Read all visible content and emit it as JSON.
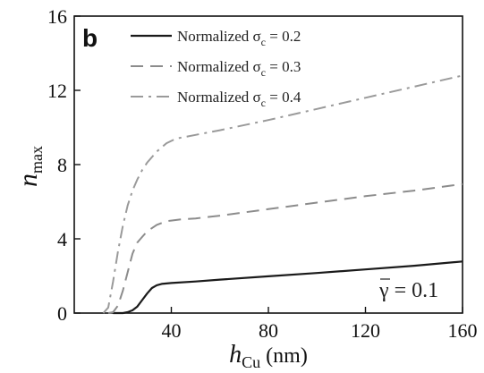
{
  "chart_data": {
    "type": "line",
    "panel_label": "b",
    "xlabel": {
      "main": "h",
      "sub": "Cu",
      "unit": " (nm)"
    },
    "ylabel": {
      "main": "n",
      "sub": "max"
    },
    "xlim": [
      0,
      160
    ],
    "ylim": [
      0,
      16
    ],
    "xticks": [
      40,
      80,
      120,
      160
    ],
    "yticks": [
      0,
      4,
      8,
      12,
      16
    ],
    "annotation": "γ = 0.1",
    "series": [
      {
        "name": "Normalized σc = 0.2",
        "label_prefix": "Normalized σ",
        "label_sub": "c",
        "label_suffix": " = 0.2",
        "color": "#1a1a1a",
        "dash": "solid",
        "x": [
          16,
          20,
          22,
          24,
          26,
          28,
          30,
          32,
          34,
          36,
          40,
          50,
          60,
          80,
          100,
          120,
          140,
          160
        ],
        "y": [
          0,
          0,
          0.05,
          0.15,
          0.35,
          0.7,
          1.05,
          1.35,
          1.5,
          1.57,
          1.62,
          1.7,
          1.8,
          1.98,
          2.16,
          2.35,
          2.55,
          2.78
        ]
      },
      {
        "name": "Normalized σc = 0.3",
        "label_prefix": "Normalized σ",
        "label_sub": "c",
        "label_suffix": " = 0.3",
        "color": "#8c8c8c",
        "dash": "dashed",
        "x": [
          14,
          16,
          18,
          20,
          22,
          24,
          26,
          28,
          30,
          34,
          38,
          44,
          50,
          60,
          80,
          100,
          120,
          140,
          160
        ],
        "y": [
          0,
          0.05,
          0.4,
          1.2,
          2.2,
          3.2,
          3.8,
          4.1,
          4.4,
          4.75,
          4.95,
          5.05,
          5.1,
          5.25,
          5.6,
          5.95,
          6.3,
          6.6,
          6.95
        ]
      },
      {
        "name": "Normalized σc = 0.4",
        "label_prefix": "Normalized σ",
        "label_sub": "c",
        "label_suffix": " = 0.4",
        "color": "#9a9a9a",
        "dash": "dashdot",
        "x": [
          12,
          14,
          16,
          18,
          20,
          22,
          24,
          26,
          28,
          30,
          34,
          38,
          42,
          46,
          50,
          60,
          80,
          100,
          120,
          140,
          160
        ],
        "y": [
          0,
          0.3,
          1.7,
          3.3,
          4.7,
          5.8,
          6.6,
          7.2,
          7.7,
          8.1,
          8.7,
          9.15,
          9.4,
          9.5,
          9.6,
          9.85,
          10.4,
          11.0,
          11.6,
          12.2,
          12.8
        ]
      }
    ]
  }
}
